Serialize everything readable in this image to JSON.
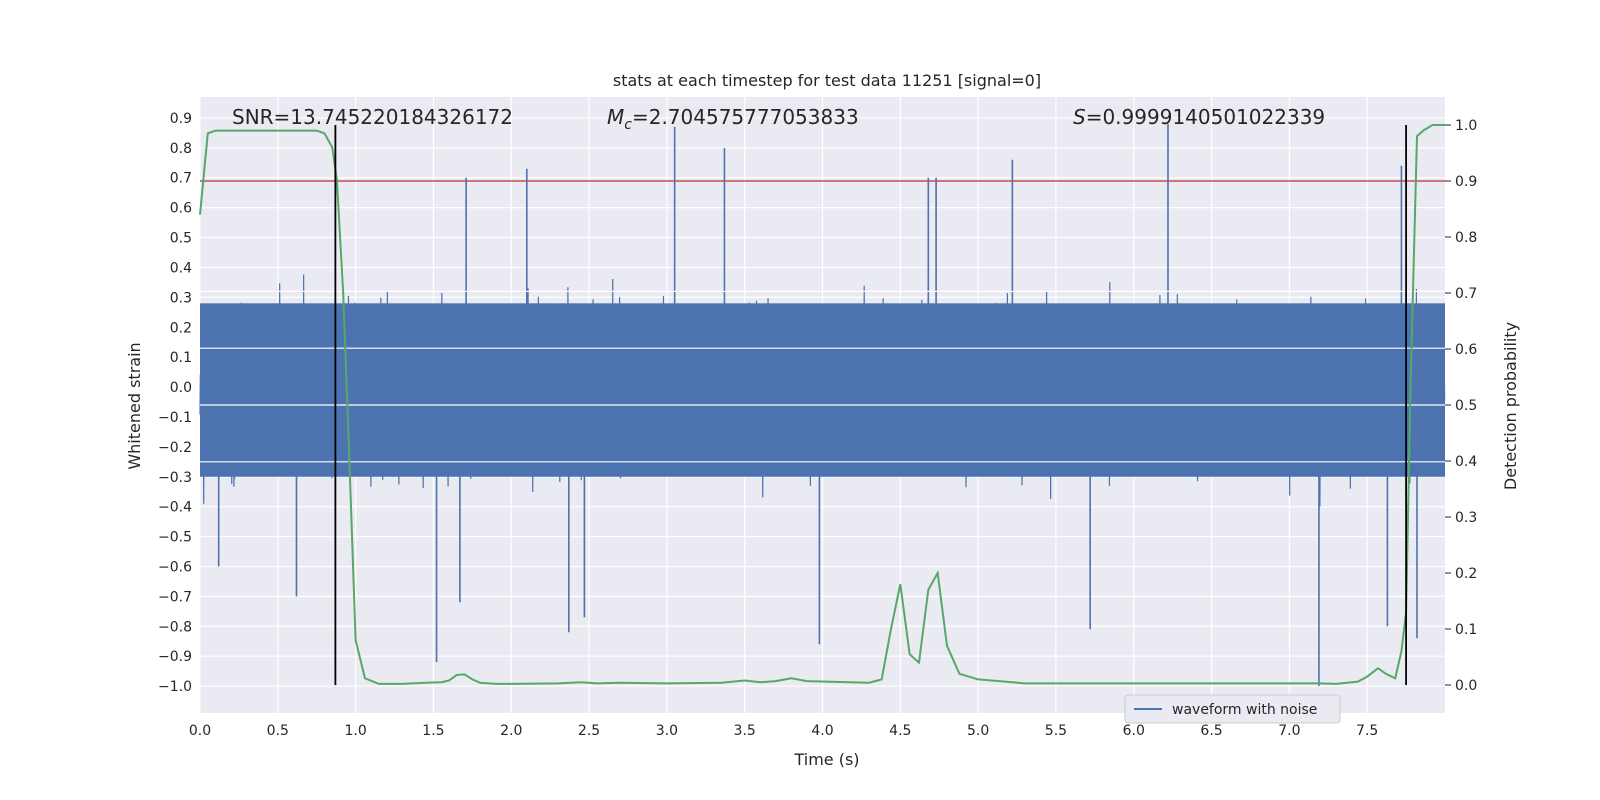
{
  "chart_data": {
    "type": "line",
    "title": "stats at each timestep for test data 11251 [signal=0]",
    "xlabel": "Time (s)",
    "ylabel_left": "Whitened strain",
    "ylabel_right": "Detection probability",
    "xlim": [
      0.0,
      8.0
    ],
    "ylim_left": [
      -1.09,
      0.97
    ],
    "ylim_right": [
      -0.05,
      1.05
    ],
    "x_ticks": [
      "0.0",
      "0.5",
      "1.0",
      "1.5",
      "2.0",
      "2.5",
      "3.0",
      "3.5",
      "4.0",
      "4.5",
      "5.0",
      "5.5",
      "6.0",
      "6.5",
      "7.0",
      "7.5"
    ],
    "y_left_ticks": [
      "0.9",
      "0.8",
      "0.7",
      "0.6",
      "0.5",
      "0.4",
      "0.3",
      "0.2",
      "0.1",
      "0.0",
      "−0.1",
      "−0.2",
      "−0.3",
      "−0.4",
      "−0.5",
      "−0.6",
      "−0.7",
      "−0.8",
      "−0.9",
      "−1.0"
    ],
    "y_right_ticks": [
      "1.0",
      "0.9",
      "0.8",
      "0.7",
      "0.6",
      "0.5",
      "0.4",
      "0.3",
      "0.2",
      "0.1",
      "0.0"
    ],
    "grid": true,
    "annotations": {
      "snr": "SNR=13.745220184326172",
      "mc_symbol": "M",
      "mc_sub": "c",
      "mc_value": "=2.704575777053833",
      "s_symbol": "S",
      "s_value": "=0.9999140501022339"
    },
    "threshold": {
      "axis": "right",
      "value": 0.9,
      "color": "#c44e52"
    },
    "vlines": [
      0.87,
      7.75
    ],
    "series": [
      {
        "name": "waveform with noise",
        "axis": "left",
        "color": "#4c72b0",
        "description": "dense whitened-strain noise, mostly within ±0.3, spikes up to about 0.9 and down to about -1.0",
        "spikes": [
          {
            "x": 3.05,
            "y": 0.87
          },
          {
            "x": 3.37,
            "y": 0.8
          },
          {
            "x": 5.22,
            "y": 0.76
          },
          {
            "x": 6.22,
            "y": 0.88
          },
          {
            "x": 2.1,
            "y": 0.73
          },
          {
            "x": 7.72,
            "y": 0.74
          },
          {
            "x": 1.71,
            "y": 0.7
          },
          {
            "x": 4.68,
            "y": 0.7
          },
          {
            "x": 4.73,
            "y": 0.7
          },
          {
            "x": 1.52,
            "y": -0.92
          },
          {
            "x": 1.67,
            "y": -0.72
          },
          {
            "x": 2.37,
            "y": -0.82
          },
          {
            "x": 2.47,
            "y": -0.77
          },
          {
            "x": 3.98,
            "y": -0.86
          },
          {
            "x": 5.72,
            "y": -0.81
          },
          {
            "x": 7.19,
            "y": -1.0
          },
          {
            "x": 7.82,
            "y": -0.84
          },
          {
            "x": 7.63,
            "y": -0.8
          },
          {
            "x": 0.62,
            "y": -0.7
          },
          {
            "x": 0.12,
            "y": -0.6
          }
        ]
      },
      {
        "name": "detection probability",
        "axis": "right",
        "color": "#55a868",
        "x": [
          0.0,
          0.05,
          0.1,
          0.15,
          0.2,
          0.3,
          0.4,
          0.5,
          0.6,
          0.7,
          0.75,
          0.8,
          0.85,
          0.88,
          0.92,
          0.96,
          1.0,
          1.06,
          1.15,
          1.3,
          1.45,
          1.55,
          1.6,
          1.65,
          1.7,
          1.75,
          1.8,
          1.9,
          2.0,
          2.3,
          2.45,
          2.55,
          2.7,
          3.0,
          3.35,
          3.5,
          3.6,
          3.7,
          3.8,
          3.9,
          4.3,
          4.38,
          4.44,
          4.5,
          4.56,
          4.62,
          4.68,
          4.74,
          4.8,
          4.88,
          5.0,
          5.3,
          5.6,
          6.0,
          6.15,
          6.3,
          6.6,
          7.0,
          7.19,
          7.3,
          7.44,
          7.5,
          7.57,
          7.62,
          7.68,
          7.72,
          7.75,
          7.78,
          7.82,
          7.86,
          7.92,
          8.0
        ],
        "values": [
          0.84,
          0.985,
          0.99,
          0.99,
          0.99,
          0.99,
          0.99,
          0.99,
          0.99,
          0.99,
          0.99,
          0.985,
          0.96,
          0.9,
          0.7,
          0.4,
          0.08,
          0.012,
          0.002,
          0.002,
          0.004,
          0.005,
          0.008,
          0.018,
          0.019,
          0.01,
          0.004,
          0.002,
          0.002,
          0.003,
          0.005,
          0.003,
          0.004,
          0.003,
          0.004,
          0.008,
          0.005,
          0.007,
          0.012,
          0.007,
          0.004,
          0.01,
          0.1,
          0.18,
          0.055,
          0.04,
          0.17,
          0.2,
          0.07,
          0.02,
          0.01,
          0.003,
          0.003,
          0.003,
          0.003,
          0.003,
          0.003,
          0.003,
          0.003,
          0.002,
          0.006,
          0.015,
          0.03,
          0.02,
          0.012,
          0.06,
          0.13,
          0.55,
          0.98,
          0.99,
          1.0,
          1.0
        ]
      }
    ],
    "legend": {
      "position": "lower-right",
      "entries": [
        "waveform with noise"
      ]
    }
  }
}
